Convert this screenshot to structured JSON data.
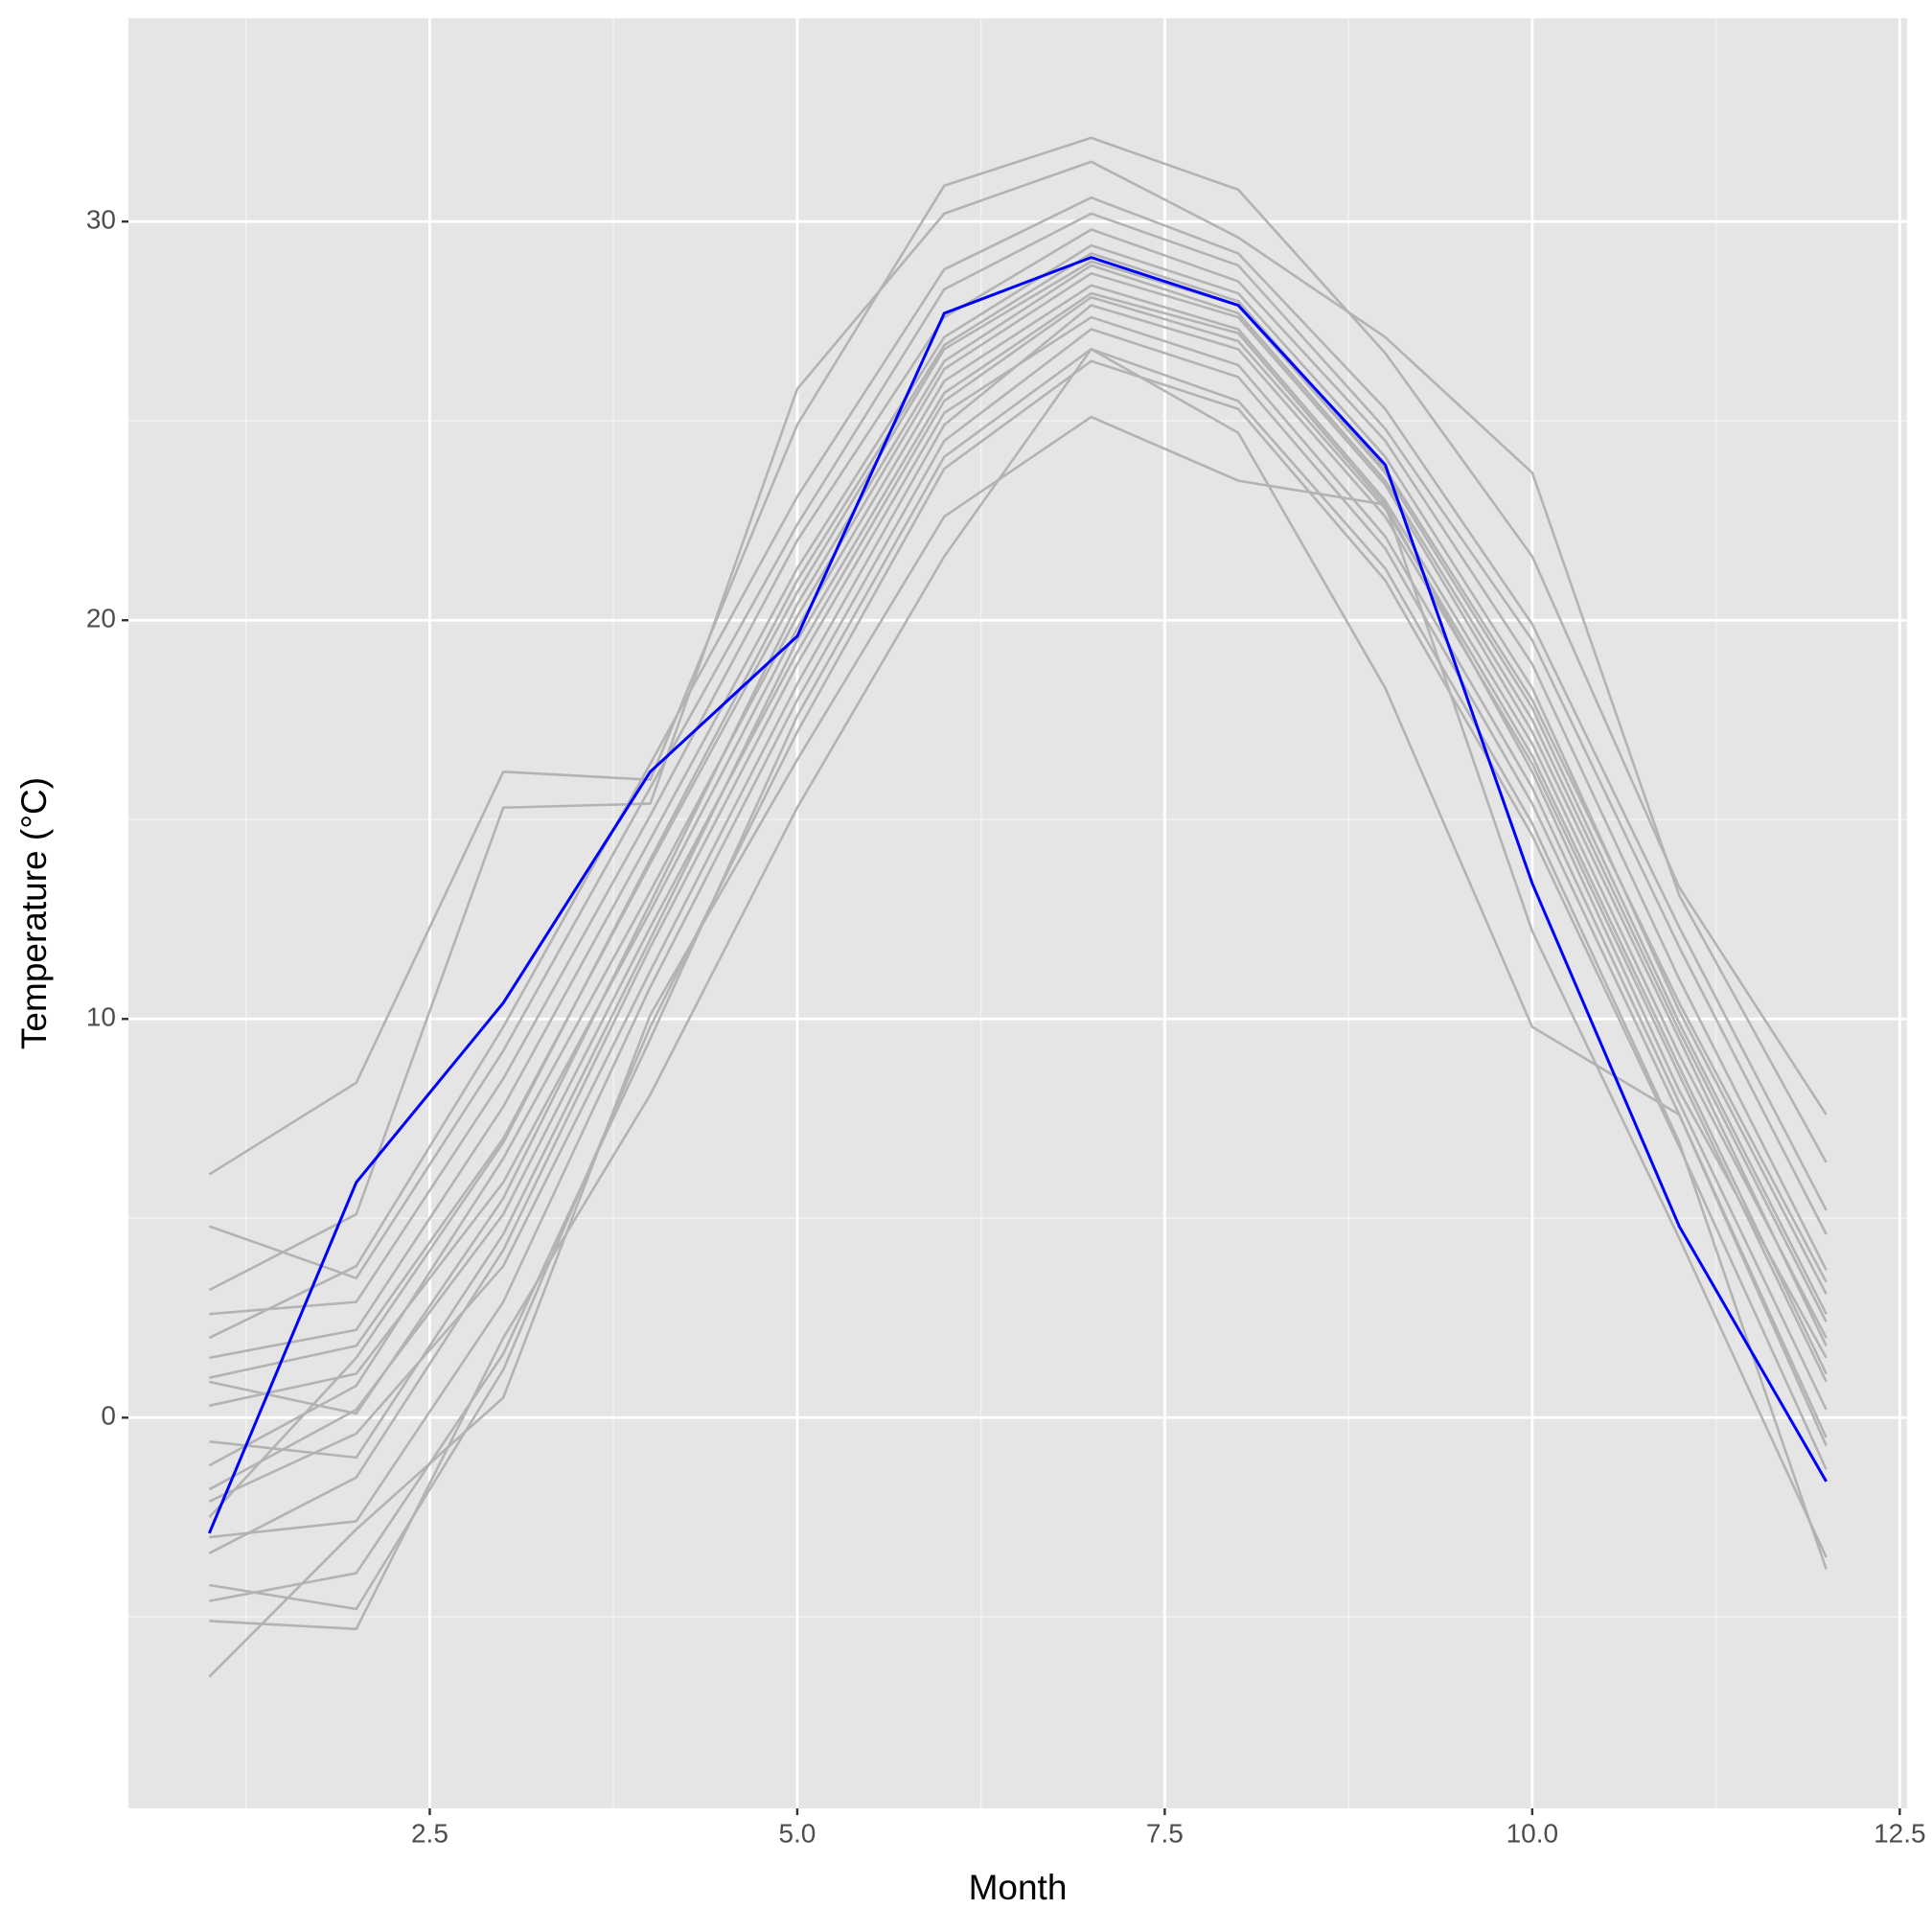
{
  "chart_data": {
    "type": "line",
    "x_label": "Month",
    "y_label": "Temperature (°C)",
    "x": [
      1,
      2,
      3,
      4,
      5,
      6,
      7,
      8,
      9,
      10,
      11,
      12
    ],
    "xlim": [
      0.45,
      12.55
    ],
    "ylim": [
      -9.8,
      35.1
    ],
    "xticks": [
      2.5,
      {
        "value": 5,
        "label": "5.0"
      },
      7.5,
      {
        "value": 10,
        "label": "10.0"
      },
      12.5
    ],
    "yticks": [
      0,
      10,
      20,
      30
    ],
    "minor_xticks": [
      1.25,
      3.75,
      6.25,
      8.75,
      11.25
    ],
    "minor_yticks": [
      -5,
      5,
      15,
      25
    ],
    "grid": true,
    "series": [
      {
        "color": "#b3b3b3",
        "values": [
          -1.2,
          0.8,
          6.5,
          13.2,
          20.1,
          26.3,
          28.7,
          27.6,
          23.4,
          17.2,
          9.5,
          1.8
        ]
      },
      {
        "color": "#b3b3b3",
        "values": [
          1.5,
          2.2,
          7.8,
          14.5,
          21.3,
          27.1,
          29.4,
          28.2,
          24.1,
          18.3,
          10.2,
          3.1
        ]
      },
      {
        "color": "#b3b3b3",
        "values": [
          -3.4,
          -1.5,
          4.2,
          11.8,
          18.9,
          25.2,
          27.6,
          26.4,
          22.1,
          15.8,
          7.9,
          0.2
        ]
      },
      {
        "color": "#b3b3b3",
        "values": [
          4.8,
          3.5,
          9.2,
          15.8,
          22.4,
          28.3,
          30.2,
          28.9,
          24.8,
          19.5,
          11.8,
          4.6
        ]
      },
      {
        "color": "#b3b3b3",
        "values": [
          -4.2,
          -4.8,
          1.2,
          9.8,
          17.2,
          23.8,
          26.5,
          25.3,
          21.0,
          14.6,
          6.8,
          -1.3
        ]
      },
      {
        "color": "#b3b3b3",
        "values": [
          0.3,
          1.1,
          5.9,
          12.7,
          19.8,
          26.0,
          28.4,
          27.3,
          23.0,
          16.9,
          9.1,
          2.0
        ]
      },
      {
        "color": "#b3b3b3",
        "values": [
          -2.1,
          -0.4,
          3.8,
          11.2,
          18.4,
          24.9,
          27.9,
          26.8,
          22.6,
          16.4,
          8.6,
          0.9
        ]
      },
      {
        "color": "#b3b3b3",
        "values": [
          2.6,
          2.9,
          8.5,
          15.1,
          22.0,
          27.6,
          29.8,
          28.5,
          24.5,
          18.9,
          11.0,
          3.7
        ]
      },
      {
        "color": "#b3b3b3",
        "values": [
          -6.5,
          -2.8,
          0.5,
          10.1,
          16.5,
          22.6,
          25.1,
          23.5,
          22.9,
          12.2,
          4.5,
          -3.5
        ]
      },
      {
        "color": "#b3b3b3",
        "values": [
          6.1,
          8.4,
          16.2,
          16.0,
          24.9,
          30.9,
          32.1,
          30.8,
          26.7,
          21.6,
          13.3,
          7.6
        ]
      },
      {
        "color": "#b3b3b3",
        "values": [
          -1.8,
          0.2,
          5.1,
          12.3,
          19.2,
          25.5,
          28.1,
          27.0,
          22.8,
          16.6,
          8.8,
          1.1
        ]
      },
      {
        "color": "#b3b3b3",
        "values": [
          1.0,
          1.8,
          7.0,
          13.9,
          20.7,
          26.8,
          29.0,
          27.9,
          23.7,
          17.8,
          9.9,
          2.6
        ]
      },
      {
        "color": "#b3b3b3",
        "values": [
          -5.1,
          -5.3,
          2.0,
          8.1,
          15.3,
          21.6,
          26.8,
          24.7,
          18.3,
          9.8,
          7.6,
          -0.7
        ]
      },
      {
        "color": "#b3b3b3",
        "values": [
          3.2,
          5.1,
          15.3,
          15.4,
          25.8,
          30.2,
          31.5,
          29.6,
          27.1,
          23.7,
          13.1,
          6.4
        ]
      },
      {
        "color": "#b3b3b3",
        "values": [
          -0.6,
          -1.0,
          4.6,
          12.0,
          19.5,
          25.7,
          28.2,
          27.2,
          22.9,
          16.2,
          8.2,
          1.5
        ]
      },
      {
        "color": "#b3b3b3",
        "values": [
          -3.0,
          -2.6,
          2.9,
          10.8,
          18.0,
          24.5,
          27.3,
          26.1,
          21.8,
          15.4,
          7.6,
          -0.5
        ]
      },
      {
        "color": "#b3b3b3",
        "values": [
          2.0,
          3.8,
          9.8,
          16.4,
          23.1,
          28.8,
          30.6,
          29.2,
          25.3,
          19.9,
          12.3,
          5.2
        ]
      },
      {
        "color": "#b3b3b3",
        "values": [
          -4.6,
          -3.9,
          1.6,
          9.5,
          17.6,
          24.1,
          26.8,
          25.5,
          21.3,
          14.9,
          6.9,
          -3.8
        ]
      },
      {
        "color": "#b3b3b3",
        "values": [
          0.9,
          0.1,
          5.5,
          12.9,
          20.4,
          26.5,
          28.9,
          27.7,
          23.5,
          17.5,
          9.7,
          2.4
        ]
      },
      {
        "color": "#b3b3b3",
        "values": [
          -2.5,
          1.5,
          6.9,
          14.0,
          21.0,
          26.9,
          29.2,
          28.0,
          23.8,
          18.0,
          10.4,
          3.4
        ]
      },
      {
        "color": "#0000ff",
        "values": [
          -2.9,
          5.9,
          10.4,
          16.2,
          19.6,
          27.7,
          29.1,
          27.9,
          23.9,
          13.4,
          4.8,
          -1.6
        ]
      }
    ]
  }
}
